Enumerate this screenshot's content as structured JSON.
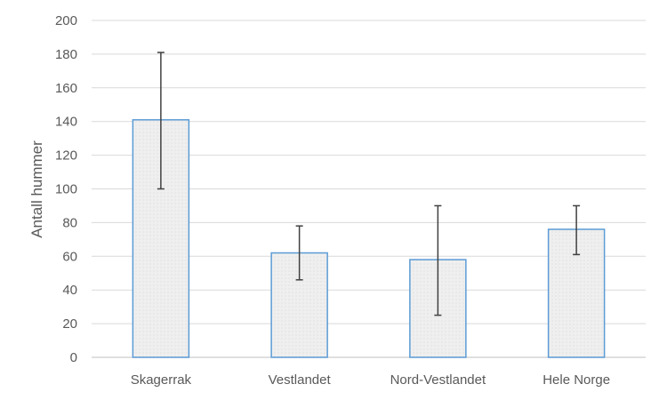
{
  "chart_data": {
    "type": "bar",
    "categories": [
      "Skagerrak",
      "Vestlandet",
      "Nord-Vestlandet",
      "Hele Norge"
    ],
    "values": [
      141,
      62,
      58,
      76
    ],
    "error_bars": {
      "lower": [
        100,
        46,
        25,
        61
      ],
      "upper": [
        181,
        78,
        90,
        90
      ]
    },
    "xlabel": "",
    "ylabel": "Antall hummer",
    "ylim": [
      0,
      200
    ],
    "yticks": [
      0,
      20,
      40,
      60,
      80,
      100,
      120,
      140,
      160,
      180,
      200
    ],
    "grid": true,
    "legend": "none",
    "colors": {
      "bar_fill": "#efefef",
      "bar_stroke": "#5b9bd5",
      "error_bar": "#404040",
      "grid": "#d9d9d9",
      "text": "#595959"
    }
  }
}
